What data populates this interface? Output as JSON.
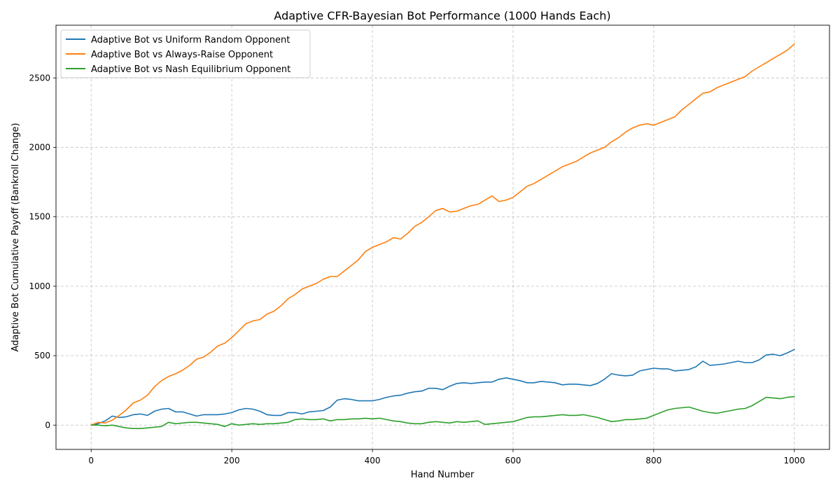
{
  "chart_data": {
    "type": "line",
    "title": "Adaptive CFR-Bayesian Bot Performance (1000 Hands Each)",
    "xlabel": "Hand Number",
    "ylabel": "Adaptive Bot Cumulative Payoff (Bankroll Change)",
    "xlim": [
      -50,
      1050
    ],
    "ylim": [
      -175,
      2880
    ],
    "xticks": [
      0,
      200,
      400,
      600,
      800,
      1000
    ],
    "yticks": [
      0,
      500,
      1000,
      1500,
      2000,
      2500
    ],
    "grid": true,
    "legend_position": "top-left",
    "series": [
      {
        "name": "Adaptive Bot vs Uniform Random Opponent",
        "color": "#1f77b4",
        "points": [
          [
            0,
            0
          ],
          [
            10,
            10
          ],
          [
            20,
            30
          ],
          [
            30,
            65
          ],
          [
            40,
            55
          ],
          [
            50,
            60
          ],
          [
            60,
            75
          ],
          [
            70,
            80
          ],
          [
            80,
            70
          ],
          [
            90,
            100
          ],
          [
            100,
            115
          ],
          [
            110,
            120
          ],
          [
            120,
            95
          ],
          [
            130,
            95
          ],
          [
            140,
            80
          ],
          [
            150,
            65
          ],
          [
            160,
            75
          ],
          [
            170,
            75
          ],
          [
            180,
            75
          ],
          [
            190,
            80
          ],
          [
            200,
            90
          ],
          [
            210,
            110
          ],
          [
            220,
            120
          ],
          [
            230,
            115
          ],
          [
            240,
            100
          ],
          [
            250,
            75
          ],
          [
            260,
            70
          ],
          [
            270,
            70
          ],
          [
            280,
            90
          ],
          [
            290,
            90
          ],
          [
            300,
            80
          ],
          [
            310,
            95
          ],
          [
            320,
            100
          ],
          [
            330,
            105
          ],
          [
            340,
            130
          ],
          [
            350,
            180
          ],
          [
            360,
            190
          ],
          [
            370,
            185
          ],
          [
            380,
            175
          ],
          [
            390,
            175
          ],
          [
            400,
            175
          ],
          [
            410,
            185
          ],
          [
            420,
            200
          ],
          [
            430,
            210
          ],
          [
            440,
            215
          ],
          [
            450,
            230
          ],
          [
            460,
            240
          ],
          [
            470,
            245
          ],
          [
            480,
            265
          ],
          [
            490,
            265
          ],
          [
            500,
            255
          ],
          [
            510,
            280
          ],
          [
            520,
            300
          ],
          [
            530,
            305
          ],
          [
            540,
            300
          ],
          [
            550,
            305
          ],
          [
            560,
            310
          ],
          [
            570,
            310
          ],
          [
            580,
            330
          ],
          [
            590,
            340
          ],
          [
            600,
            330
          ],
          [
            610,
            320
          ],
          [
            620,
            305
          ],
          [
            630,
            305
          ],
          [
            640,
            315
          ],
          [
            650,
            310
          ],
          [
            660,
            305
          ],
          [
            670,
            290
          ],
          [
            680,
            295
          ],
          [
            690,
            295
          ],
          [
            700,
            290
          ],
          [
            710,
            285
          ],
          [
            720,
            300
          ],
          [
            730,
            330
          ],
          [
            740,
            370
          ],
          [
            750,
            360
          ],
          [
            760,
            355
          ],
          [
            770,
            360
          ],
          [
            780,
            390
          ],
          [
            790,
            400
          ],
          [
            800,
            410
          ],
          [
            810,
            405
          ],
          [
            820,
            405
          ],
          [
            830,
            390
          ],
          [
            840,
            395
          ],
          [
            850,
            400
          ],
          [
            860,
            420
          ],
          [
            870,
            460
          ],
          [
            880,
            430
          ],
          [
            890,
            435
          ],
          [
            900,
            440
          ],
          [
            910,
            450
          ],
          [
            920,
            460
          ],
          [
            930,
            450
          ],
          [
            940,
            450
          ],
          [
            950,
            470
          ],
          [
            960,
            505
          ],
          [
            970,
            510
          ],
          [
            980,
            500
          ],
          [
            990,
            520
          ],
          [
            1000,
            545
          ]
        ]
      },
      {
        "name": "Adaptive Bot vs Always-Raise Opponent",
        "color": "#ff7f0e",
        "points": [
          [
            0,
            0
          ],
          [
            10,
            20
          ],
          [
            20,
            15
          ],
          [
            30,
            35
          ],
          [
            40,
            70
          ],
          [
            50,
            110
          ],
          [
            60,
            160
          ],
          [
            70,
            180
          ],
          [
            80,
            215
          ],
          [
            90,
            275
          ],
          [
            100,
            320
          ],
          [
            110,
            350
          ],
          [
            120,
            370
          ],
          [
            130,
            395
          ],
          [
            140,
            430
          ],
          [
            150,
            475
          ],
          [
            160,
            490
          ],
          [
            170,
            525
          ],
          [
            180,
            570
          ],
          [
            190,
            590
          ],
          [
            200,
            630
          ],
          [
            210,
            680
          ],
          [
            220,
            730
          ],
          [
            230,
            750
          ],
          [
            240,
            760
          ],
          [
            250,
            800
          ],
          [
            260,
            820
          ],
          [
            270,
            860
          ],
          [
            280,
            910
          ],
          [
            290,
            940
          ],
          [
            300,
            980
          ],
          [
            310,
            1000
          ],
          [
            320,
            1020
          ],
          [
            330,
            1050
          ],
          [
            340,
            1070
          ],
          [
            350,
            1070
          ],
          [
            360,
            1110
          ],
          [
            370,
            1150
          ],
          [
            380,
            1190
          ],
          [
            390,
            1250
          ],
          [
            400,
            1280
          ],
          [
            410,
            1300
          ],
          [
            420,
            1320
          ],
          [
            430,
            1350
          ],
          [
            440,
            1340
          ],
          [
            450,
            1380
          ],
          [
            460,
            1430
          ],
          [
            470,
            1460
          ],
          [
            480,
            1500
          ],
          [
            490,
            1545
          ],
          [
            500,
            1560
          ],
          [
            510,
            1535
          ],
          [
            520,
            1540
          ],
          [
            530,
            1560
          ],
          [
            540,
            1580
          ],
          [
            550,
            1590
          ],
          [
            560,
            1620
          ],
          [
            570,
            1650
          ],
          [
            580,
            1610
          ],
          [
            590,
            1620
          ],
          [
            600,
            1640
          ],
          [
            610,
            1680
          ],
          [
            620,
            1720
          ],
          [
            630,
            1740
          ],
          [
            640,
            1770
          ],
          [
            650,
            1800
          ],
          [
            660,
            1830
          ],
          [
            670,
            1860
          ],
          [
            680,
            1880
          ],
          [
            690,
            1900
          ],
          [
            700,
            1930
          ],
          [
            710,
            1960
          ],
          [
            720,
            1980
          ],
          [
            730,
            2000
          ],
          [
            740,
            2040
          ],
          [
            750,
            2070
          ],
          [
            760,
            2110
          ],
          [
            770,
            2140
          ],
          [
            780,
            2160
          ],
          [
            790,
            2170
          ],
          [
            800,
            2160
          ],
          [
            810,
            2180
          ],
          [
            820,
            2200
          ],
          [
            830,
            2220
          ],
          [
            840,
            2270
          ],
          [
            850,
            2310
          ],
          [
            860,
            2350
          ],
          [
            870,
            2390
          ],
          [
            880,
            2400
          ],
          [
            890,
            2430
          ],
          [
            900,
            2450
          ],
          [
            910,
            2470
          ],
          [
            920,
            2490
          ],
          [
            930,
            2510
          ],
          [
            940,
            2550
          ],
          [
            950,
            2580
          ],
          [
            960,
            2610
          ],
          [
            970,
            2640
          ],
          [
            980,
            2670
          ],
          [
            990,
            2700
          ],
          [
            1000,
            2745
          ]
        ]
      },
      {
        "name": "Adaptive Bot vs Nash Equilibrium Opponent",
        "color": "#2ca02c",
        "points": [
          [
            0,
            0
          ],
          [
            10,
            0
          ],
          [
            20,
            -5
          ],
          [
            30,
            0
          ],
          [
            40,
            -10
          ],
          [
            50,
            -20
          ],
          [
            60,
            -25
          ],
          [
            70,
            -25
          ],
          [
            80,
            -20
          ],
          [
            90,
            -15
          ],
          [
            100,
            -10
          ],
          [
            110,
            20
          ],
          [
            120,
            10
          ],
          [
            130,
            15
          ],
          [
            140,
            20
          ],
          [
            150,
            20
          ],
          [
            160,
            15
          ],
          [
            170,
            10
          ],
          [
            180,
            5
          ],
          [
            190,
            -10
          ],
          [
            200,
            10
          ],
          [
            210,
            0
          ],
          [
            220,
            5
          ],
          [
            230,
            10
          ],
          [
            240,
            5
          ],
          [
            250,
            10
          ],
          [
            260,
            10
          ],
          [
            270,
            15
          ],
          [
            280,
            20
          ],
          [
            290,
            40
          ],
          [
            300,
            45
          ],
          [
            310,
            40
          ],
          [
            320,
            40
          ],
          [
            330,
            45
          ],
          [
            340,
            30
          ],
          [
            350,
            40
          ],
          [
            360,
            40
          ],
          [
            370,
            45
          ],
          [
            380,
            45
          ],
          [
            390,
            50
          ],
          [
            400,
            45
          ],
          [
            410,
            50
          ],
          [
            420,
            40
          ],
          [
            430,
            30
          ],
          [
            440,
            25
          ],
          [
            450,
            15
          ],
          [
            460,
            10
          ],
          [
            470,
            10
          ],
          [
            480,
            20
          ],
          [
            490,
            25
          ],
          [
            500,
            20
          ],
          [
            510,
            15
          ],
          [
            520,
            25
          ],
          [
            530,
            20
          ],
          [
            540,
            25
          ],
          [
            550,
            30
          ],
          [
            560,
            5
          ],
          [
            570,
            10
          ],
          [
            580,
            15
          ],
          [
            590,
            20
          ],
          [
            600,
            25
          ],
          [
            610,
            40
          ],
          [
            620,
            55
          ],
          [
            630,
            60
          ],
          [
            640,
            60
          ],
          [
            650,
            65
          ],
          [
            660,
            70
          ],
          [
            670,
            75
          ],
          [
            680,
            70
          ],
          [
            690,
            70
          ],
          [
            700,
            75
          ],
          [
            710,
            65
          ],
          [
            720,
            55
          ],
          [
            730,
            40
          ],
          [
            740,
            25
          ],
          [
            750,
            30
          ],
          [
            760,
            40
          ],
          [
            770,
            40
          ],
          [
            780,
            45
          ],
          [
            790,
            50
          ],
          [
            800,
            70
          ],
          [
            810,
            90
          ],
          [
            820,
            110
          ],
          [
            830,
            120
          ],
          [
            840,
            125
          ],
          [
            850,
            130
          ],
          [
            860,
            115
          ],
          [
            870,
            100
          ],
          [
            880,
            90
          ],
          [
            890,
            85
          ],
          [
            900,
            95
          ],
          [
            910,
            105
          ],
          [
            920,
            115
          ],
          [
            930,
            120
          ],
          [
            940,
            140
          ],
          [
            950,
            170
          ],
          [
            960,
            200
          ],
          [
            970,
            195
          ],
          [
            980,
            190
          ],
          [
            990,
            200
          ],
          [
            1000,
            205
          ]
        ]
      }
    ]
  }
}
